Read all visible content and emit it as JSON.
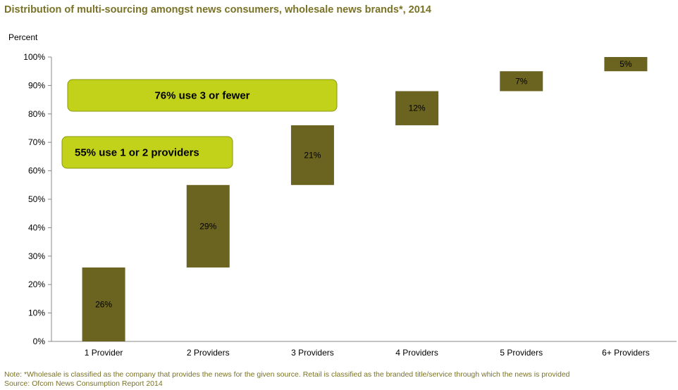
{
  "chart_data": {
    "type": "bar",
    "subtype": "waterfall",
    "title": "Distribution of multi-sourcing amongst news consumers, wholesale news brands*, 2014",
    "ylabel": "Percent",
    "ylim": [
      0,
      100
    ],
    "yticks": [
      "0%",
      "10%",
      "20%",
      "30%",
      "40%",
      "50%",
      "60%",
      "70%",
      "80%",
      "90%",
      "100%"
    ],
    "categories": [
      "1 Provider",
      "2 Providers",
      "3 Providers",
      "4 Providers",
      "5 Providers",
      "6+ Providers"
    ],
    "values": [
      26,
      29,
      21,
      12,
      7,
      5
    ],
    "data_labels": [
      "26%",
      "29%",
      "21%",
      "12%",
      "7%",
      "5%"
    ],
    "grid": false,
    "bar_color": "#6b6320",
    "annotations": [
      {
        "text": "76%  use 3 or fewer",
        "color": "#c2d21a"
      },
      {
        "text": "55%  use 1 or 2 providers",
        "color": "#c2d21a"
      }
    ]
  },
  "footnotes": {
    "note": "Note: *Wholesale is classified as the company that provides the news for the given source. Retail is classified as the branded title/service through which the news is provided",
    "source": "Source: Ofcom News Consumption Report 2014"
  },
  "colors": {
    "title": "#7a7226",
    "bar": "#6b6320",
    "callout_fill": "#c2d21a",
    "axis": "#888888"
  }
}
